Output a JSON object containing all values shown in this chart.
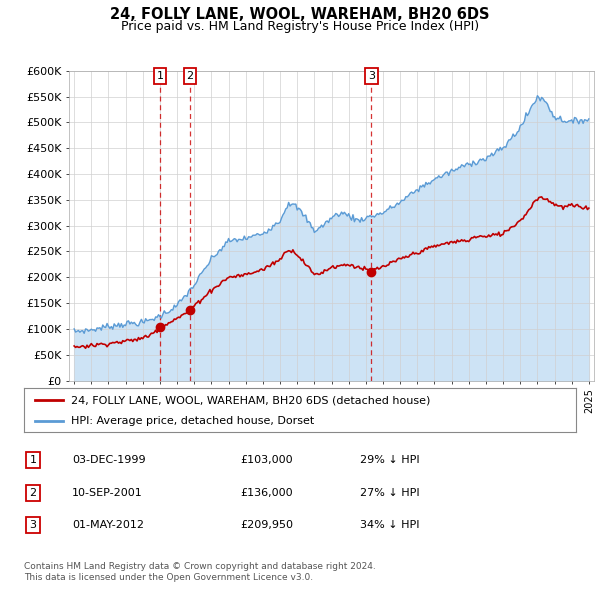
{
  "title": "24, FOLLY LANE, WOOL, WAREHAM, BH20 6DS",
  "subtitle": "Price paid vs. HM Land Registry's House Price Index (HPI)",
  "legend_line1": "24, FOLLY LANE, WOOL, WAREHAM, BH20 6DS (detached house)",
  "legend_line2": "HPI: Average price, detached house, Dorset",
  "footer1": "Contains HM Land Registry data © Crown copyright and database right 2024.",
  "footer2": "This data is licensed under the Open Government Licence v3.0.",
  "transactions": [
    {
      "label": "1",
      "date": "03-DEC-1999",
      "price": 103000,
      "x": 2000.0
    },
    {
      "label": "2",
      "date": "10-SEP-2001",
      "price": 136000,
      "x": 2001.75
    },
    {
      "label": "3",
      "date": "01-MAY-2012",
      "price": 209950,
      "x": 2012.33
    }
  ],
  "table_rows": [
    [
      "1",
      "03-DEC-1999",
      "£103,000",
      "29% ↓ HPI"
    ],
    [
      "2",
      "10-SEP-2001",
      "£136,000",
      "27% ↓ HPI"
    ],
    [
      "3",
      "01-MAY-2012",
      "£209,950",
      "34% ↓ HPI"
    ]
  ],
  "hpi_color": "#5b9bd5",
  "hpi_fill_color": "#cde3f5",
  "price_color": "#c00000",
  "ylim": [
    0,
    600000
  ],
  "xlim_start": 1994.7,
  "xlim_end": 2025.3,
  "yticks": [
    0,
    50000,
    100000,
    150000,
    200000,
    250000,
    300000,
    350000,
    400000,
    450000,
    500000,
    550000,
    600000
  ],
  "ytick_labels": [
    "£0",
    "£50K",
    "£100K",
    "£150K",
    "£200K",
    "£250K",
    "£300K",
    "£350K",
    "£400K",
    "£450K",
    "£500K",
    "£550K",
    "£600K"
  ],
  "hpi_keypoints": [
    [
      1995.0,
      95000
    ],
    [
      1996.0,
      98000
    ],
    [
      1997.0,
      105000
    ],
    [
      1998.0,
      110000
    ],
    [
      1999.0,
      112000
    ],
    [
      2000.0,
      125000
    ],
    [
      2001.0,
      145000
    ],
    [
      2002.0,
      185000
    ],
    [
      2003.0,
      235000
    ],
    [
      2004.0,
      270000
    ],
    [
      2005.0,
      275000
    ],
    [
      2006.0,
      285000
    ],
    [
      2007.0,
      310000
    ],
    [
      2007.5,
      345000
    ],
    [
      2008.0,
      335000
    ],
    [
      2008.5,
      315000
    ],
    [
      2009.0,
      290000
    ],
    [
      2009.5,
      300000
    ],
    [
      2010.0,
      315000
    ],
    [
      2010.5,
      325000
    ],
    [
      2011.0,
      320000
    ],
    [
      2011.5,
      310000
    ],
    [
      2012.0,
      315000
    ],
    [
      2012.5,
      320000
    ],
    [
      2013.0,
      325000
    ],
    [
      2014.0,
      345000
    ],
    [
      2015.0,
      370000
    ],
    [
      2016.0,
      390000
    ],
    [
      2017.0,
      405000
    ],
    [
      2018.0,
      420000
    ],
    [
      2019.0,
      430000
    ],
    [
      2020.0,
      450000
    ],
    [
      2021.0,
      490000
    ],
    [
      2021.5,
      520000
    ],
    [
      2022.0,
      550000
    ],
    [
      2022.5,
      540000
    ],
    [
      2023.0,
      510000
    ],
    [
      2023.5,
      505000
    ],
    [
      2024.0,
      500000
    ],
    [
      2024.5,
      505000
    ],
    [
      2025.0,
      505000
    ]
  ],
  "price_keypoints": [
    [
      1995.0,
      65000
    ],
    [
      1996.0,
      68000
    ],
    [
      1997.0,
      72000
    ],
    [
      1998.0,
      76000
    ],
    [
      1999.0,
      82000
    ],
    [
      1999.5,
      90000
    ],
    [
      2000.0,
      103000
    ],
    [
      2000.5,
      112000
    ],
    [
      2001.0,
      120000
    ],
    [
      2001.75,
      136000
    ],
    [
      2002.0,
      145000
    ],
    [
      2003.0,
      175000
    ],
    [
      2004.0,
      200000
    ],
    [
      2005.0,
      205000
    ],
    [
      2006.0,
      215000
    ],
    [
      2007.0,
      235000
    ],
    [
      2007.5,
      255000
    ],
    [
      2008.0,
      245000
    ],
    [
      2008.5,
      225000
    ],
    [
      2009.0,
      205000
    ],
    [
      2009.5,
      210000
    ],
    [
      2010.0,
      220000
    ],
    [
      2011.0,
      225000
    ],
    [
      2011.5,
      220000
    ],
    [
      2012.0,
      215000
    ],
    [
      2012.33,
      209950
    ],
    [
      2012.5,
      215000
    ],
    [
      2013.0,
      220000
    ],
    [
      2014.0,
      235000
    ],
    [
      2015.0,
      248000
    ],
    [
      2016.0,
      260000
    ],
    [
      2017.0,
      268000
    ],
    [
      2018.0,
      272000
    ],
    [
      2018.5,
      280000
    ],
    [
      2019.0,
      278000
    ],
    [
      2019.5,
      282000
    ],
    [
      2020.0,
      285000
    ],
    [
      2021.0,
      310000
    ],
    [
      2021.5,
      330000
    ],
    [
      2022.0,
      355000
    ],
    [
      2022.5,
      352000
    ],
    [
      2023.0,
      342000
    ],
    [
      2023.5,
      335000
    ],
    [
      2024.0,
      340000
    ],
    [
      2024.5,
      335000
    ],
    [
      2025.0,
      335000
    ]
  ]
}
